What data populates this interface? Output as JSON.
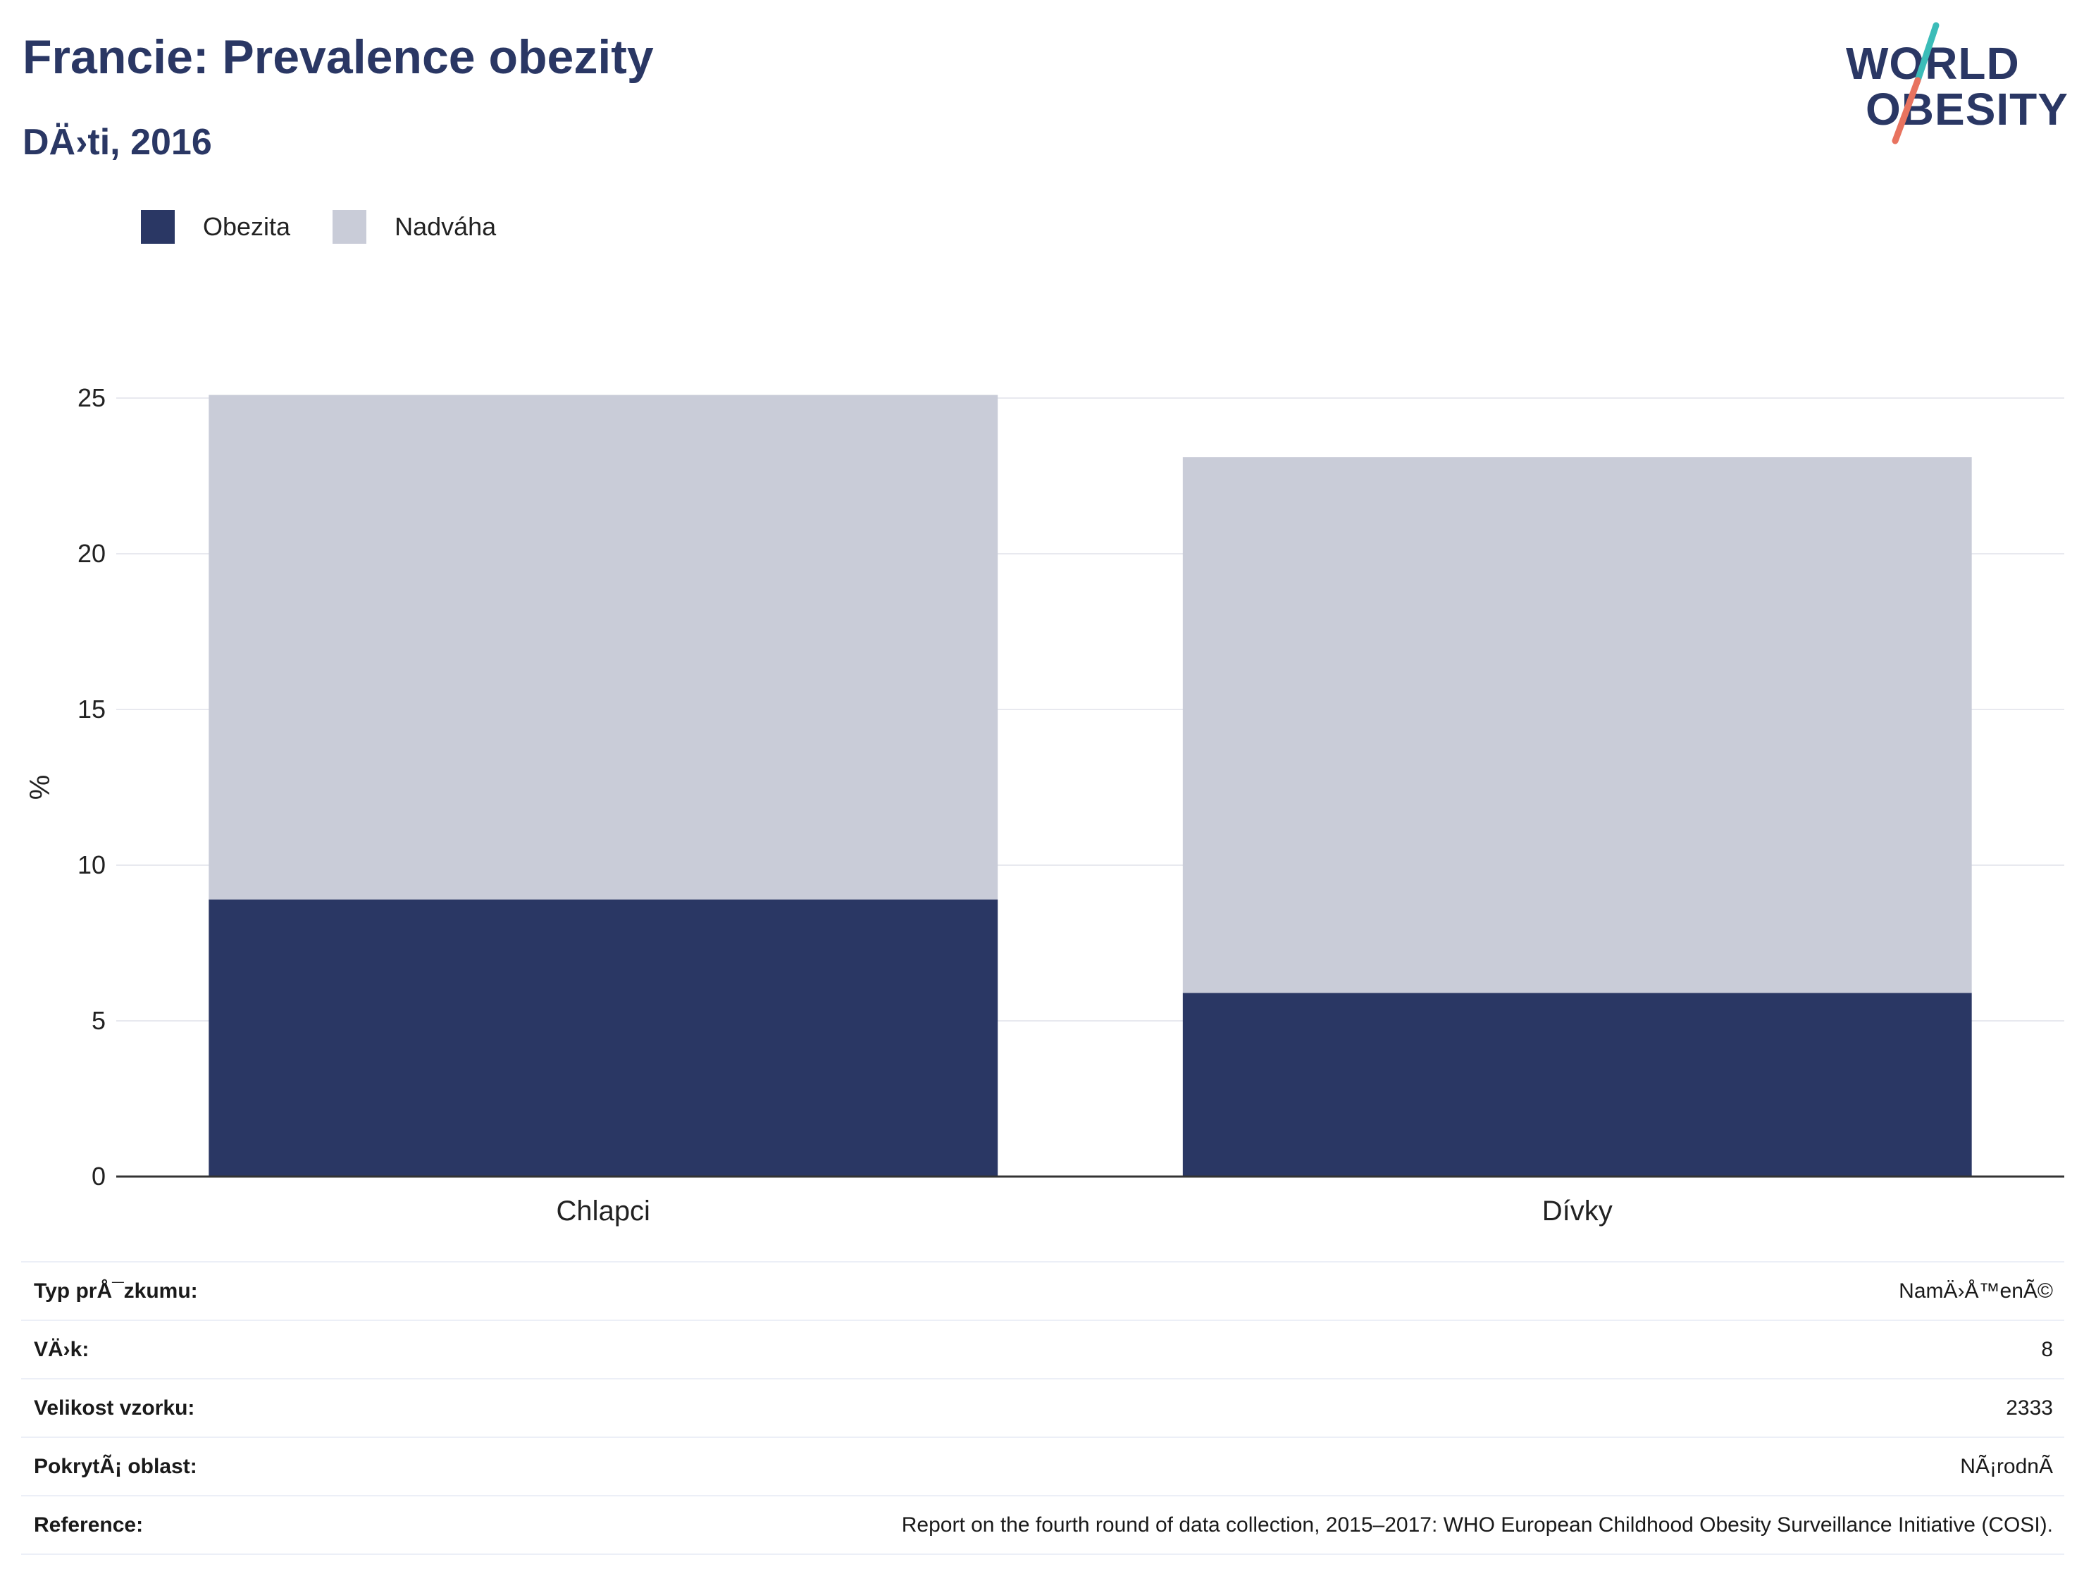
{
  "header": {
    "title": "Francie: Prevalence obezity",
    "subtitle": "DÄ›ti, 2016"
  },
  "logo": {
    "line1": "WORLD",
    "line2": "OBESITY",
    "colors": {
      "text": "#2a3764",
      "slash_top": "#3bbcb8",
      "slash_bottom": "#e8735f"
    }
  },
  "colors": {
    "obesity": "#2a3764",
    "overweight": "#c9ccd8",
    "grid": "#e8e9ef",
    "axis": "#333333"
  },
  "chart_data": {
    "type": "bar",
    "stacked": true,
    "categories": [
      "Chlapci",
      "Dívky"
    ],
    "series": [
      {
        "name": "Obezita",
        "values": [
          8.9,
          5.9
        ]
      },
      {
        "name": "Nadváha",
        "values": [
          16.2,
          17.2
        ]
      }
    ],
    "title": "",
    "xlabel": "",
    "ylabel": "%",
    "ylim": [
      0,
      25
    ],
    "yticks": [
      0,
      5,
      10,
      15,
      20,
      25
    ],
    "grid": true,
    "legend_position": "top-left"
  },
  "info": [
    {
      "key": "Typ prÅ¯zkumu:",
      "value": "NamÄ›Å™enÃ©"
    },
    {
      "key": "VÄ›k:",
      "value": "8"
    },
    {
      "key": "Velikost vzorku:",
      "value": "2333"
    },
    {
      "key": "PokrytÃ¡ oblast:",
      "value": "NÃ¡rodnÃ"
    },
    {
      "key": "Reference:",
      "value": "Report on the fourth round of data collection, 2015–2017: WHO European Childhood Obesity Surveillance Initiative (COSI)."
    }
  ]
}
